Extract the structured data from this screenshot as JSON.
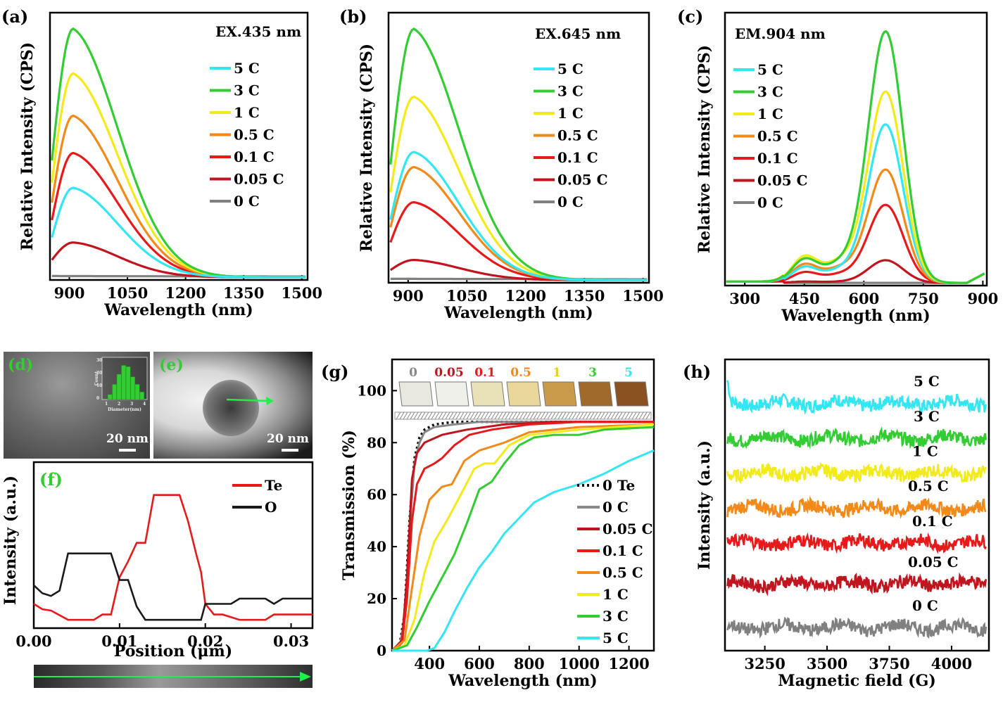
{
  "chart_data": [
    {
      "type": "line",
      "panel": "(a)",
      "annotation": "EX.435 nm",
      "xlabel": "Wavelength (nm)",
      "ylabel": "Relative Intensity (CPS)",
      "xlim": [
        850,
        1515
      ],
      "ylim": [
        0,
        1.0
      ],
      "xticks": [
        "900",
        "1050",
        "1200",
        "1350",
        "1500"
      ],
      "xtick_values": [
        900,
        1050,
        1200,
        1350,
        1500
      ],
      "grid": false,
      "legend_position": "top-right",
      "series": [
        {
          "name": "5 C",
          "color": "#33e6f2",
          "peak_x": 910,
          "peak": 0.36,
          "start": 0.16
        },
        {
          "name": "3 C",
          "color": "#33cc33",
          "peak_x": 910,
          "peak": 1.0,
          "start": 0.47
        },
        {
          "name": "1 C",
          "color": "#f2ea1a",
          "peak_x": 910,
          "peak": 0.82,
          "start": 0.38
        },
        {
          "name": "0.5 C",
          "color": "#f28a1a",
          "peak_x": 910,
          "peak": 0.65,
          "start": 0.3
        },
        {
          "name": "0.1 C",
          "color": "#e61a1a",
          "peak_x": 910,
          "peak": 0.5,
          "start": 0.23
        },
        {
          "name": "0.05 C",
          "color": "#c0141e",
          "peak_x": 910,
          "peak": 0.14,
          "start": 0.07
        },
        {
          "name": "0 C",
          "color": "#808080",
          "peak_x": 910,
          "peak": 0.005,
          "start": 0.005
        }
      ]
    },
    {
      "type": "line",
      "panel": "(b)",
      "annotation": "EX.645 nm",
      "xlabel": "Wavelength (nm)",
      "ylabel": "Relative Intensity (CPS)",
      "xlim": [
        850,
        1515
      ],
      "ylim": [
        0,
        1.0
      ],
      "xticks": [
        "900",
        "1050",
        "1200",
        "1350",
        "1500"
      ],
      "xtick_values": [
        900,
        1050,
        1200,
        1350,
        1500
      ],
      "grid": false,
      "legend_position": "top-right",
      "series": [
        {
          "name": "5  C",
          "color": "#33e6f2",
          "peak_x": 915,
          "peak": 0.51,
          "start": 0.24
        },
        {
          "name": "3  C",
          "color": "#33cc33",
          "peak_x": 915,
          "peak": 1.0,
          "start": 0.46
        },
        {
          "name": "1  C",
          "color": "#f2ea1a",
          "peak_x": 915,
          "peak": 0.73,
          "start": 0.35
        },
        {
          "name": "0.5  C",
          "color": "#f28a1a",
          "peak_x": 915,
          "peak": 0.45,
          "start": 0.21
        },
        {
          "name": "0.1  C",
          "color": "#e61a1a",
          "peak_x": 915,
          "peak": 0.31,
          "start": 0.15
        },
        {
          "name": "0.05  C",
          "color": "#c0141e",
          "peak_x": 915,
          "peak": 0.08,
          "start": 0.04
        },
        {
          "name": "0  C",
          "color": "#808080",
          "peak_x": 915,
          "peak": 0.005,
          "start": 0.005
        }
      ]
    },
    {
      "type": "line",
      "panel": "(c)",
      "annotation": "EM.904 nm",
      "xlabel": "Wavelength (nm)",
      "ylabel": "Relative Intensity (CPS)",
      "xlim": [
        250,
        910
      ],
      "ylim": [
        0,
        1.0
      ],
      "xticks": [
        "300",
        "450",
        "600",
        "750",
        "900"
      ],
      "xtick_values": [
        300,
        450,
        600,
        750,
        900
      ],
      "grid": false,
      "legend_position": "top-left",
      "series": [
        {
          "name": "5 C",
          "color": "#33e6f2",
          "peak_x": 655,
          "peak": 0.63,
          "shoulder": 0.06
        },
        {
          "name": "3 C",
          "color": "#33cc33",
          "peak_x": 655,
          "peak": 1.0,
          "shoulder": 0.09
        },
        {
          "name": "1 C",
          "color": "#f2ea1a",
          "peak_x": 655,
          "peak": 0.76,
          "shoulder": 0.1
        },
        {
          "name": "0.5 C",
          "color": "#f28a1a",
          "peak_x": 655,
          "peak": 0.45,
          "shoulder": 0.07
        },
        {
          "name": "0.1 C",
          "color": "#e61a1a",
          "peak_x": 655,
          "peak": 0.31,
          "shoulder": 0.04
        },
        {
          "name": "0.05 C",
          "color": "#c0141e",
          "peak_x": 655,
          "peak": 0.09,
          "shoulder": 0.005
        },
        {
          "name": "0 C",
          "color": "#808080",
          "peak_x": 655,
          "peak": 0.0,
          "shoulder": 0.0
        }
      ]
    },
    {
      "type": "line",
      "panel": "(f)",
      "xlabel": "Position (μm)",
      "ylabel": "Intensity  (a.u.)",
      "xlim": [
        0,
        0.0325
      ],
      "ylim": [
        0,
        1.0
      ],
      "xticks": [
        "0.00",
        "0.01",
        "0.02",
        "0.03"
      ],
      "xtick_values": [
        0,
        0.01,
        0.02,
        0.03
      ],
      "grid": false,
      "legend_position": "top-right",
      "series": [
        {
          "name": "Te",
          "color": "#e61a1a",
          "x": [
            0,
            0.001,
            0.002,
            0.004,
            0.005,
            0.007,
            0.008,
            0.009,
            0.01,
            0.011,
            0.012,
            0.013,
            0.014,
            0.015,
            0.017,
            0.018,
            0.019,
            0.0195,
            0.02,
            0.021,
            0.022,
            0.024,
            0.025,
            0.027,
            0.028,
            0.029,
            0.0325
          ],
          "y": [
            0.12,
            0.08,
            0.07,
            0.0,
            0.0,
            0.0,
            0.04,
            0.04,
            0.32,
            0.44,
            0.58,
            0.58,
            0.94,
            0.94,
            0.94,
            0.74,
            0.48,
            0.36,
            0.12,
            0.04,
            0.04,
            0.0,
            0.0,
            0.0,
            0.04,
            0.04,
            0.04
          ]
        },
        {
          "name": "O",
          "color": "#1a1a1a",
          "x": [
            0,
            0.001,
            0.002,
            0.003,
            0.004,
            0.005,
            0.008,
            0.009,
            0.01,
            0.011,
            0.012,
            0.013,
            0.0195,
            0.02,
            0.021,
            0.023,
            0.024,
            0.027,
            0.028,
            0.029,
            0.0325
          ],
          "y": [
            0.26,
            0.2,
            0.18,
            0.22,
            0.5,
            0.5,
            0.5,
            0.5,
            0.3,
            0.3,
            0.1,
            0.0,
            0.0,
            0.12,
            0.12,
            0.12,
            0.16,
            0.16,
            0.12,
            0.16,
            0.16
          ]
        }
      ]
    },
    {
      "type": "line",
      "panel": "(g)",
      "xlabel": "Wavelength (nm)",
      "ylabel": "Transmission (%)",
      "xlim": [
        250,
        1300
      ],
      "ylim": [
        0,
        112
      ],
      "xticks": [
        "400",
        "600",
        "800",
        "1000",
        "1200"
      ],
      "xtick_values": [
        400,
        600,
        800,
        1000,
        1200
      ],
      "yticks": [
        "0",
        "20",
        "40",
        "60",
        "80",
        "100"
      ],
      "ytick_values": [
        0,
        20,
        40,
        60,
        80,
        100
      ],
      "grid": false,
      "legend_position": "bottom-right",
      "glass_labels": [
        "0",
        "0.05",
        "0.1",
        "0.5",
        "1",
        "3",
        "5"
      ],
      "series": [
        {
          "name": "0 Te",
          "color": "#111111",
          "dash": true,
          "x": [
            250,
            280,
            300,
            320,
            340,
            360,
            380,
            420,
            500,
            600,
            800,
            1300
          ],
          "y": [
            0,
            2,
            14,
            50,
            74,
            82,
            85,
            87,
            88,
            88,
            88,
            88
          ]
        },
        {
          "name": "0 C",
          "color": "#888888",
          "x": [
            250,
            280,
            300,
            320,
            340,
            360,
            380,
            420,
            500,
            600,
            800,
            1300
          ],
          "y": [
            0,
            1,
            12,
            46,
            72,
            80,
            84,
            86,
            87,
            88,
            88,
            88
          ]
        },
        {
          "name": "0.05 C",
          "color": "#c0141e",
          "x": [
            250,
            290,
            310,
            330,
            350,
            380,
            450,
            550,
            700,
            900,
            1300
          ],
          "y": [
            0,
            4,
            28,
            66,
            76,
            80,
            83,
            85,
            87,
            88,
            88
          ]
        },
        {
          "name": "0.1 C",
          "color": "#e61a1a",
          "x": [
            250,
            290,
            310,
            330,
            350,
            380,
            420,
            450,
            500,
            560,
            650,
            800,
            1000,
            1300
          ],
          "y": [
            0,
            3,
            20,
            50,
            64,
            70,
            72,
            74,
            79,
            83,
            85,
            87,
            88,
            88
          ]
        },
        {
          "name": "0.5 C",
          "color": "#f28a1a",
          "x": [
            250,
            300,
            330,
            360,
            400,
            450,
            490,
            540,
            600,
            700,
            800,
            1000,
            1300
          ],
          "y": [
            0,
            4,
            24,
            44,
            58,
            63,
            64,
            73,
            77,
            80,
            84,
            86,
            87
          ]
        },
        {
          "name": "1 C",
          "color": "#f2ea1a",
          "x": [
            250,
            300,
            340,
            380,
            420,
            470,
            520,
            580,
            620,
            660,
            720,
            800,
            900,
            1000,
            1300
          ],
          "y": [
            0,
            2,
            12,
            30,
            42,
            50,
            59,
            70,
            72,
            72,
            79,
            83,
            84,
            85,
            87
          ]
        },
        {
          "name": "3 C",
          "color": "#33cc33",
          "x": [
            250,
            310,
            350,
            400,
            450,
            500,
            550,
            600,
            650,
            700,
            760,
            820,
            900,
            1000,
            1100,
            1300
          ],
          "y": [
            0,
            2,
            9,
            19,
            28,
            37,
            49,
            62,
            65,
            72,
            79,
            82,
            83,
            83,
            85,
            86
          ]
        },
        {
          "name": "5 C",
          "color": "#33e6f2",
          "x": [
            250,
            390,
            420,
            460,
            500,
            550,
            600,
            650,
            700,
            760,
            820,
            900,
            1000,
            1100,
            1200,
            1300
          ],
          "y": [
            0,
            0,
            1,
            7,
            15,
            24,
            32,
            38,
            45,
            51,
            57,
            61,
            64,
            68,
            73,
            77
          ]
        }
      ]
    },
    {
      "type": "line",
      "panel": "(h)",
      "xlabel": "Magnetic field (G)",
      "ylabel": "Intensity (a.u.)",
      "xlim": [
        3090,
        4150
      ],
      "ylim": [
        0,
        1.0
      ],
      "xticks": [
        "3250",
        "3500",
        "3750",
        "4000"
      ],
      "xtick_values": [
        3250,
        3500,
        3750,
        4000
      ],
      "grid": false,
      "legend_position": "inline",
      "series": [
        {
          "name": "5 C",
          "color": "#33e6f2",
          "baseline": 0.85
        },
        {
          "name": "3 C",
          "color": "#33cc33",
          "baseline": 0.73
        },
        {
          "name": "1 C",
          "color": "#f2ea1a",
          "baseline": 0.61
        },
        {
          "name": "0.5 C",
          "color": "#f28a1a",
          "baseline": 0.49
        },
        {
          "name": "0.1 C",
          "color": "#e61a1a",
          "baseline": 0.37
        },
        {
          "name": "0.05 C",
          "color": "#c0141e",
          "baseline": 0.23
        },
        {
          "name": "0 C",
          "color": "#808080",
          "baseline": 0.08
        }
      ]
    }
  ],
  "micrographs": {
    "d": {
      "letter": "(d)",
      "scale": "20 nm",
      "inset_xlabel": "Diameter(nm)",
      "inset_ylabel": "Count",
      "inset_xticks": [
        "1",
        "2",
        "3",
        "4"
      ],
      "inset_yticks": [
        "0",
        "10",
        "20",
        "30"
      ],
      "histogram": [
        4,
        12,
        20,
        27,
        26,
        18,
        12,
        6
      ]
    },
    "e": {
      "letter": "(e)",
      "scale": "20 nm"
    }
  }
}
